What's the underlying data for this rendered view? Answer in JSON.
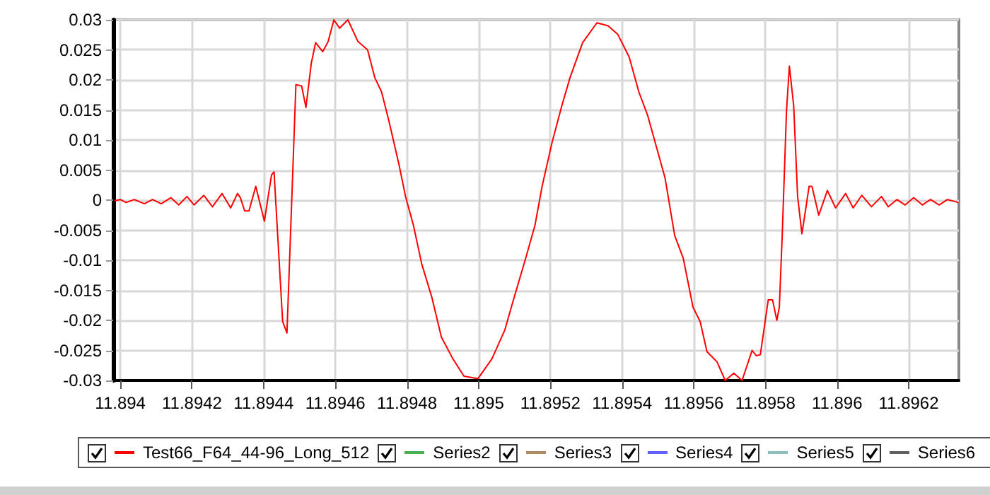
{
  "chart_data": {
    "type": "line",
    "legend": "bottom",
    "grid": true,
    "marker": "none",
    "xlim": [
      11.89398,
      11.89634
    ],
    "xticks": [
      11.894,
      11.8942,
      11.8944,
      11.8946,
      11.8948,
      11.895,
      11.8952,
      11.8954,
      11.8956,
      11.8958,
      11.896,
      11.8962
    ],
    "ylim": [
      -0.03,
      0.03
    ],
    "yticks": [
      -0.03,
      -0.025,
      -0.02,
      -0.015,
      -0.01,
      -0.005,
      0,
      0.005,
      0.01,
      0.015,
      0.02,
      0.025,
      0.03
    ],
    "series": [
      {
        "name": "Test66_F64_44-96_Long_512",
        "color": "#ff0000",
        "x": [
          11.893984,
          11.894,
          11.894016,
          11.894039,
          11.894067,
          11.89409,
          11.894114,
          11.894141,
          11.894163,
          11.894186,
          11.894206,
          11.894233,
          11.894257,
          11.894284,
          11.894308,
          11.894327,
          11.894335,
          11.894347,
          11.894359,
          11.894378,
          11.894402,
          11.894422,
          11.894429,
          11.894453,
          11.894465,
          11.89449,
          11.894506,
          11.894518,
          11.894533,
          11.894545,
          11.894565,
          11.89458,
          11.894596,
          11.894612,
          11.894635,
          11.894663,
          11.89469,
          11.89471,
          11.894729,
          11.894749,
          11.894777,
          11.894796,
          11.894818,
          11.894841,
          11.894869,
          11.894896,
          11.894928,
          11.894959,
          11.894998,
          11.895037,
          11.895073,
          11.895096,
          11.895131,
          11.895157,
          11.895177,
          11.895204,
          11.895232,
          11.895255,
          11.89529,
          11.89533,
          11.895361,
          11.895388,
          11.89542,
          11.895447,
          11.895471,
          11.89552,
          11.895547,
          11.895571,
          11.895598,
          11.895618,
          11.895637,
          11.895665,
          11.895688,
          11.895712,
          11.895735,
          11.895763,
          11.895775,
          11.895786,
          11.895808,
          11.89582,
          11.895832,
          11.895839,
          11.895847,
          11.895859,
          11.895867,
          11.895879,
          11.89589,
          11.895902,
          11.89591,
          11.895922,
          11.89593,
          11.895949,
          11.895973,
          11.895996,
          11.896024,
          11.896045,
          11.896069,
          11.896096,
          11.896124,
          11.896143,
          11.896167,
          11.89619,
          11.896214,
          11.896238,
          11.896261,
          11.896285,
          11.896308,
          11.896339
        ],
        "values": [
          -0.0001,
          0.0001,
          -0.0004,
          0.0001,
          -0.0006,
          0.0001,
          -0.0006,
          0.0004,
          -0.0008,
          0.0006,
          -0.0008,
          0.0008,
          -0.0011,
          0.0011,
          -0.0013,
          0.0011,
          0.0004,
          -0.0018,
          -0.0018,
          0.0023,
          -0.0035,
          0.0042,
          0.0047,
          -0.0202,
          -0.0221,
          0.0192,
          0.019,
          0.0154,
          0.0228,
          0.0262,
          0.0247,
          0.0264,
          0.03,
          0.0286,
          0.03,
          0.0264,
          0.025,
          0.0204,
          0.018,
          0.0133,
          0.0061,
          0.0006,
          -0.0042,
          -0.0106,
          -0.0161,
          -0.0228,
          -0.0264,
          -0.0293,
          -0.0297,
          -0.0264,
          -0.0216,
          -0.0168,
          -0.0097,
          -0.0042,
          0.0023,
          0.0094,
          0.0157,
          0.0204,
          0.0262,
          0.0295,
          0.029,
          0.0276,
          0.0238,
          0.018,
          0.0142,
          0.0037,
          -0.0059,
          -0.0097,
          -0.0178,
          -0.0202,
          -0.0252,
          -0.0269,
          -0.03,
          -0.0288,
          -0.03,
          -0.025,
          -0.0259,
          -0.0257,
          -0.0166,
          -0.0166,
          -0.02,
          -0.0178,
          -0.0059,
          0.0149,
          0.0223,
          0.0157,
          0.0006,
          -0.0056,
          -0.0025,
          0.0023,
          0.0023,
          -0.0025,
          0.0016,
          -0.0013,
          0.0011,
          -0.0013,
          0.0008,
          -0.0011,
          0.0006,
          -0.0011,
          0.0001,
          -0.0008,
          0.0004,
          -0.0008,
          0.0001,
          -0.0008,
          0.0001,
          -0.0004
        ]
      },
      {
        "name": "Series2",
        "color": "#4caf50"
      },
      {
        "name": "Series3",
        "color": "#b08a60"
      },
      {
        "name": "Series4",
        "color": "#6060ff"
      },
      {
        "name": "Series5",
        "color": "#8fbcbc"
      },
      {
        "name": "Series6",
        "color": "#606060"
      }
    ]
  }
}
